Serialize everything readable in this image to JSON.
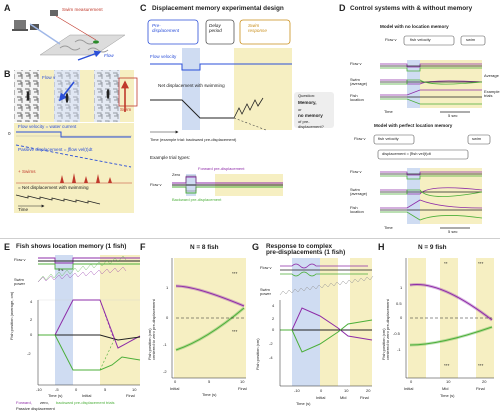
{
  "colors": {
    "blue": "#2b4fd8",
    "red": "#c0392b",
    "purple": "#8e2ca8",
    "green": "#4caf3a",
    "yellow": "#f6efc2",
    "lightblue": "#cfdcf2",
    "grey": "#9a9a9a"
  },
  "panel_a": {
    "label": "A",
    "swim_measurement": "Swim\nmeasurement",
    "flow": "Flow",
    "icons": [
      "camera-icon",
      "computer-icon",
      "projector-icon",
      "fish-icon"
    ]
  },
  "panel_b": {
    "label": "B",
    "flow_v": "Flow v",
    "swim": "Swim",
    "flow_velocity_eq": "Flow velocity = water current",
    "passive_disp": "Passive displacement = ∫flow vel(t)dt",
    "swims": "+ Swims",
    "net_disp": "= Net displacement with swimming",
    "time": "Time",
    "zero": "0"
  },
  "panel_c": {
    "label": "C",
    "title": "Displacement memory experimental design",
    "pre_displacement": "Pre-\ndisplacement",
    "delay_period": "Delay\nperiod",
    "swim_response": "Swim\nresponse",
    "flow_velocity": "Flow velocity",
    "net_disp": "Net displacement with swimming",
    "question": "Question:",
    "memory": "Memory,",
    "or": "or",
    "no_memory": "no memory",
    "of_pre": "of pre-",
    "displacement": "displacement?",
    "time_caption": "Time (example trial: backward pre-displacement)",
    "example_types": "Example trial types:",
    "forward": "Forward pre-displacement",
    "zero": "Zero",
    "backward": "Backward pre-displacement",
    "flow_v": "Flow v"
  },
  "panel_d": {
    "label": "D",
    "title": "Control systems with & without memory",
    "subtitle1": "Model with no location memory",
    "subtitle2": "Model with perfect location memory",
    "flow_v": "Flow v",
    "fish_velocity": "fish velocity",
    "swim": "swim",
    "fish_velocity2": "fish velocity",
    "displacement_eq": "displacement = ∫fish vel(t)dt",
    "swim2": "swim",
    "rows": [
      "Flow v",
      "Swim\n(average)",
      "Fish\nlocation"
    ],
    "average": "Average",
    "example_trials": "Example\ntrials",
    "time": "Time",
    "scale": "5 sec"
  },
  "panel_e": {
    "label": "E",
    "title": "Fish shows location memory (1 fish)",
    "flow_v": "Flow v",
    "swim_power": "Swim\npower",
    "scale": "5 s",
    "ylabel": "Fish position (average, cm)",
    "yticks": [
      "4",
      "2",
      "0",
      "-2"
    ],
    "xticks": [
      "-10",
      "-5",
      "0",
      "5",
      "10"
    ],
    "xlabel_time": "Time (s)",
    "xlabels": [
      "Initial",
      "Final"
    ],
    "legend1": "Forward,",
    "legend2": "zero,",
    "legend3": "backward pre-displacement trials",
    "legend4": "Passive displacement"
  },
  "panel_f": {
    "label": "F",
    "title": "N = 8 fish",
    "ylabel": "Fish position (cm)\ncentered to zero pre-displacement",
    "yticks": [
      "1",
      "0",
      "-1",
      "-2"
    ],
    "xticks": [
      "0",
      "5",
      "10"
    ],
    "xlabels": [
      "Initial",
      "Final"
    ],
    "xlabel": "Time (s)",
    "sig": [
      "***",
      "***"
    ]
  },
  "panel_g": {
    "label": "G",
    "title": "Response to complex\npre-displacements (1 fish)",
    "flow_v": "Flow v",
    "swim_power": "Swim\npower",
    "ylabel": "Fish position (cm)",
    "yticks": [
      "4",
      "2",
      "0",
      "-2",
      "-4"
    ],
    "xticks": [
      "-10",
      "0",
      "10",
      "20"
    ],
    "xlabels": [
      "Initial",
      "Mid",
      "Final"
    ],
    "xlabel": "Time (s)"
  },
  "panel_h": {
    "label": "H",
    "title": "N = 9 fish",
    "ylabel": "Fish position (cm)\ncentered to zero pre-displacement",
    "yticks": [
      "1",
      "0.5",
      "0",
      "-0.5",
      "-1"
    ],
    "xticks": [
      "0",
      "10",
      "20"
    ],
    "xlabels": [
      "Initial",
      "Mid",
      "Final"
    ],
    "xlabel": "Time (s)",
    "sig": [
      "**",
      "***",
      "***",
      "***"
    ]
  }
}
